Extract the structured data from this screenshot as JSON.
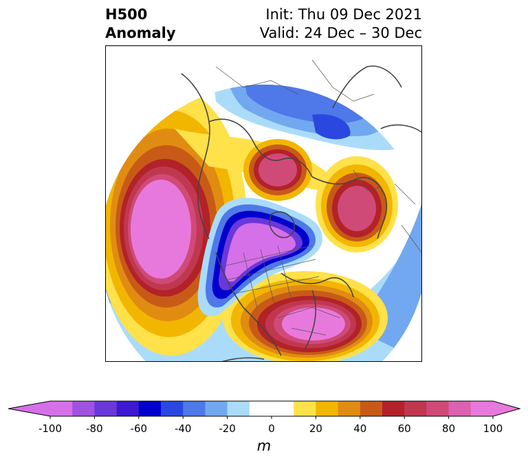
{
  "title": {
    "left_line1": "H500",
    "left_line2": "Anomaly",
    "right_line1": "Init: Thu 09 Dec 2021",
    "right_line2": "Valid: 24 Dec – 30 Dec"
  },
  "colorbar": {
    "unit": "m",
    "ticks": [
      "-100",
      "-80",
      "-60",
      "-40",
      "-20",
      "0",
      "20",
      "40",
      "60",
      "80",
      "100"
    ],
    "bins": [
      {
        "lo": -100,
        "hi": -90,
        "color": "#d670e8"
      },
      {
        "lo": -90,
        "hi": -80,
        "color": "#a052e0"
      },
      {
        "lo": -80,
        "hi": -70,
        "color": "#6a38d9"
      },
      {
        "lo": -70,
        "hi": -60,
        "color": "#3c18d0"
      },
      {
        "lo": -60,
        "hi": -50,
        "color": "#0000cd"
      },
      {
        "lo": -50,
        "hi": -40,
        "color": "#2a48e0"
      },
      {
        "lo": -40,
        "hi": -30,
        "color": "#4f78e8"
      },
      {
        "lo": -30,
        "hi": -20,
        "color": "#72a8f0"
      },
      {
        "lo": -20,
        "hi": -10,
        "color": "#aadcfa"
      },
      {
        "lo": -10,
        "hi": 10,
        "color": "#ffffff"
      },
      {
        "lo": 10,
        "hi": 20,
        "color": "#ffe14a"
      },
      {
        "lo": 20,
        "hi": 30,
        "color": "#f2b600"
      },
      {
        "lo": 30,
        "hi": 40,
        "color": "#e08c12"
      },
      {
        "lo": 40,
        "hi": 50,
        "color": "#c85a18"
      },
      {
        "lo": 50,
        "hi": 60,
        "color": "#b22228"
      },
      {
        "lo": 60,
        "hi": 70,
        "color": "#c03850"
      },
      {
        "lo": 70,
        "hi": 80,
        "color": "#d04a78"
      },
      {
        "lo": 80,
        "hi": 90,
        "color": "#da62b0"
      },
      {
        "lo": 90,
        "hi": 100,
        "color": "#e879dc"
      }
    ],
    "extend_min_color": "#d670e8",
    "extend_max_color": "#e879dc"
  }
}
